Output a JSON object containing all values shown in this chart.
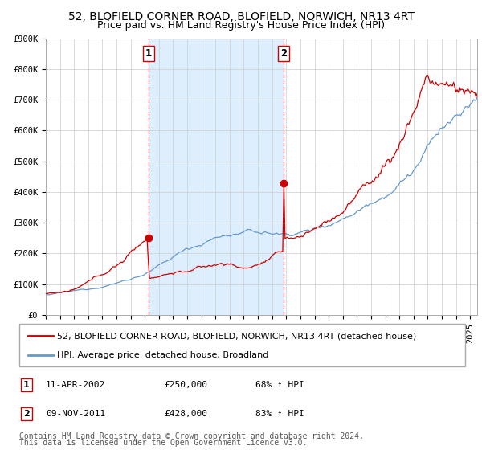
{
  "title_line1": "52, BLOFIELD CORNER ROAD, BLOFIELD, NORWICH, NR13 4RT",
  "title_line2": "Price paid vs. HM Land Registry's House Price Index (HPI)",
  "legend_red": "52, BLOFIELD CORNER ROAD, BLOFIELD, NORWICH, NR13 4RT (detached house)",
  "legend_blue": "HPI: Average price, detached house, Broadland",
  "annotation1_label": "1",
  "annotation1_date": "11-APR-2002",
  "annotation1_price": "£250,000",
  "annotation1_hpi": "68% ↑ HPI",
  "annotation2_label": "2",
  "annotation2_date": "09-NOV-2011",
  "annotation2_price": "£428,000",
  "annotation2_hpi": "83% ↑ HPI",
  "ylim_min": 0,
  "ylim_max": 900000,
  "yticks": [
    0,
    100000,
    200000,
    300000,
    400000,
    500000,
    600000,
    700000,
    800000,
    900000
  ],
  "ytick_labels": [
    "£0",
    "£100K",
    "£200K",
    "£300K",
    "£400K",
    "£500K",
    "£600K",
    "£700K",
    "£800K",
    "£900K"
  ],
  "year_start": 1995,
  "year_end": 2025,
  "red_color": "#cc0000",
  "blue_color": "#6699cc",
  "dashed_color": "#cc0000",
  "bg_shade_color": "#ddeeff",
  "grid_color": "#cccccc",
  "footer_line1": "Contains HM Land Registry data © Crown copyright and database right 2024.",
  "footer_line2": "This data is licensed under the Open Government Licence v3.0.",
  "title_fontsize": 10,
  "subtitle_fontsize": 9,
  "axis_fontsize": 7.5,
  "legend_fontsize": 8,
  "footer_fontsize": 7
}
